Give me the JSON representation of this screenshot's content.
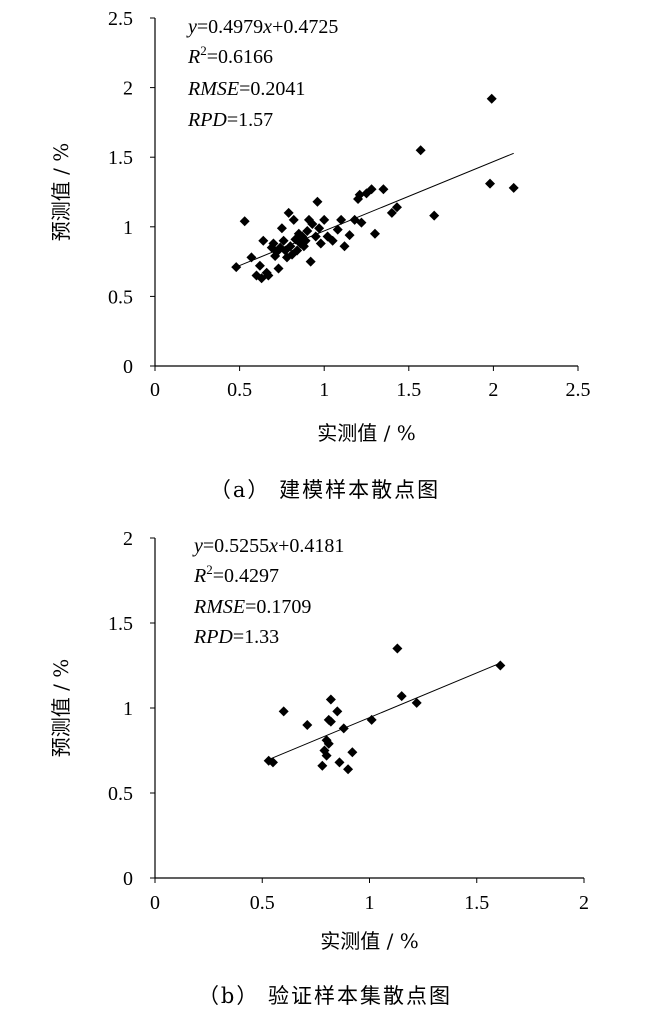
{
  "chart_data": [
    {
      "type": "scatter",
      "caption": "（a） 建模样本散点图",
      "xlabel": "实测值 / %",
      "ylabel": "预测值 / %",
      "xlim": [
        0,
        2.5
      ],
      "ylim": [
        0,
        2.5
      ],
      "xticks": [
        "0",
        "0.5",
        "1",
        "1.5",
        "2",
        "2.5"
      ],
      "yticks": [
        "0",
        "0.5",
        "1",
        "1.5",
        "2",
        "2.5"
      ],
      "grid": false,
      "annotations": [
        {
          "var": "y",
          "rest": "=0.4979",
          "var2": "x",
          "rest2": "+0.4725"
        },
        {
          "var": "R",
          "sup": "2",
          "rest": "=0.6166"
        },
        {
          "var": "RMSE",
          "rest": "=0.2041"
        },
        {
          "var": "RPD",
          "rest": "=1.57"
        }
      ],
      "trendline": {
        "slope": 0.4979,
        "intercept": 0.4725,
        "x_range": [
          0.48,
          2.12
        ]
      },
      "points": [
        [
          0.48,
          0.71
        ],
        [
          0.53,
          1.04
        ],
        [
          0.57,
          0.78
        ],
        [
          0.6,
          0.65
        ],
        [
          0.62,
          0.72
        ],
        [
          0.63,
          0.63
        ],
        [
          0.64,
          0.9
        ],
        [
          0.66,
          0.67
        ],
        [
          0.67,
          0.65
        ],
        [
          0.69,
          0.85
        ],
        [
          0.7,
          0.88
        ],
        [
          0.71,
          0.79
        ],
        [
          0.72,
          0.82
        ],
        [
          0.73,
          0.7
        ],
        [
          0.74,
          0.85
        ],
        [
          0.75,
          0.99
        ],
        [
          0.76,
          0.9
        ],
        [
          0.77,
          0.83
        ],
        [
          0.78,
          0.78
        ],
        [
          0.79,
          1.1
        ],
        [
          0.8,
          0.86
        ],
        [
          0.81,
          0.8
        ],
        [
          0.82,
          1.05
        ],
        [
          0.83,
          0.91
        ],
        [
          0.84,
          0.83
        ],
        [
          0.85,
          0.95
        ],
        [
          0.86,
          0.88
        ],
        [
          0.87,
          0.93
        ],
        [
          0.88,
          0.86
        ],
        [
          0.89,
          0.9
        ],
        [
          0.9,
          0.97
        ],
        [
          0.91,
          1.05
        ],
        [
          0.92,
          0.75
        ],
        [
          0.93,
          1.02
        ],
        [
          0.95,
          0.93
        ],
        [
          0.96,
          1.18
        ],
        [
          0.97,
          0.99
        ],
        [
          0.98,
          0.88
        ],
        [
          1.0,
          1.05
        ],
        [
          1.02,
          0.93
        ],
        [
          1.05,
          0.9
        ],
        [
          1.08,
          0.98
        ],
        [
          1.1,
          1.05
        ],
        [
          1.12,
          0.86
        ],
        [
          1.15,
          0.94
        ],
        [
          1.18,
          1.05
        ],
        [
          1.2,
          1.2
        ],
        [
          1.21,
          1.23
        ],
        [
          1.22,
          1.03
        ],
        [
          1.25,
          1.24
        ],
        [
          1.28,
          1.27
        ],
        [
          1.3,
          0.95
        ],
        [
          1.35,
          1.27
        ],
        [
          1.4,
          1.1
        ],
        [
          1.43,
          1.14
        ],
        [
          1.57,
          1.55
        ],
        [
          1.65,
          1.08
        ],
        [
          1.98,
          1.31
        ],
        [
          1.99,
          1.92
        ],
        [
          2.12,
          1.28
        ]
      ]
    },
    {
      "type": "scatter",
      "caption": "（b） 验证样本集散点图",
      "xlabel": "实测值 / %",
      "ylabel": "预测值 / %",
      "xlim": [
        0,
        2
      ],
      "ylim": [
        0,
        2
      ],
      "xticks": [
        "0",
        "0.5",
        "1",
        "1.5",
        "2"
      ],
      "yticks": [
        "0",
        "0.5",
        "1",
        "1.5",
        "2"
      ],
      "grid": false,
      "annotations": [
        {
          "var": "y",
          "rest": "=0.5255",
          "var2": "x",
          "rest2": "+0.4181"
        },
        {
          "var": "R",
          "sup": "2",
          "rest": "=0.4297"
        },
        {
          "var": "RMSE",
          "rest": "=0.1709"
        },
        {
          "var": "RPD",
          "rest": "=1.33"
        }
      ],
      "trendline": {
        "slope": 0.5255,
        "intercept": 0.4181,
        "x_range": [
          0.53,
          1.61
        ]
      },
      "points": [
        [
          0.53,
          0.69
        ],
        [
          0.55,
          0.68
        ],
        [
          0.6,
          0.98
        ],
        [
          0.71,
          0.9
        ],
        [
          0.78,
          0.66
        ],
        [
          0.79,
          0.75
        ],
        [
          0.8,
          0.72
        ],
        [
          0.8,
          0.81
        ],
        [
          0.81,
          0.79
        ],
        [
          0.81,
          0.93
        ],
        [
          0.82,
          0.92
        ],
        [
          0.82,
          1.05
        ],
        [
          0.85,
          0.98
        ],
        [
          0.86,
          0.68
        ],
        [
          0.88,
          0.88
        ],
        [
          0.9,
          0.64
        ],
        [
          0.92,
          0.74
        ],
        [
          1.01,
          0.93
        ],
        [
          1.13,
          1.35
        ],
        [
          1.15,
          1.07
        ],
        [
          1.22,
          1.03
        ],
        [
          1.61,
          1.25
        ]
      ]
    }
  ]
}
